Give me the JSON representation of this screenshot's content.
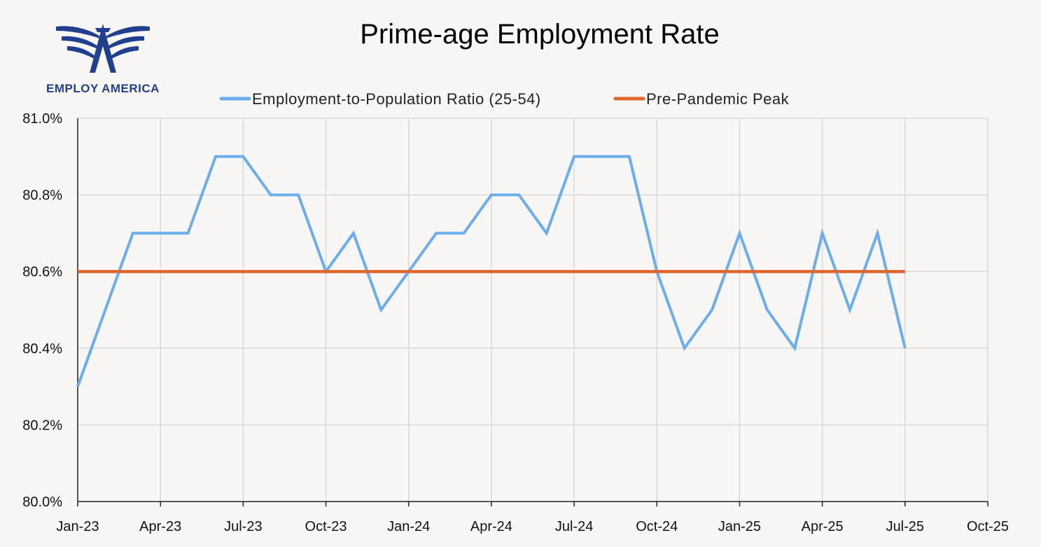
{
  "brand": {
    "name": "EMPLOY AMERICA",
    "color": "#213f8f",
    "icon": "eagle-wings-logo-icon"
  },
  "chart_data": {
    "type": "line",
    "title": "Prime-age Employment Rate",
    "xlabel": "",
    "ylabel": "",
    "x_ticks": [
      "Jan-23",
      "Apr-23",
      "Jul-23",
      "Oct-23",
      "Jan-24",
      "Apr-24",
      "Jul-24",
      "Oct-24",
      "Jan-25",
      "Apr-25",
      "Jul-25",
      "Oct-25"
    ],
    "y_ticks": [
      "80.0%",
      "80.2%",
      "80.4%",
      "80.6%",
      "80.8%",
      "81.0%"
    ],
    "ylim": [
      80.0,
      81.0
    ],
    "xlim": [
      "Jan-23",
      "Oct-25"
    ],
    "grid": true,
    "legend_position": "top-center",
    "x": [
      "Jan-23",
      "Feb-23",
      "Mar-23",
      "Apr-23",
      "May-23",
      "Jun-23",
      "Jul-23",
      "Aug-23",
      "Sep-23",
      "Oct-23",
      "Nov-23",
      "Dec-23",
      "Jan-24",
      "Feb-24",
      "Mar-24",
      "Apr-24",
      "May-24",
      "Jun-24",
      "Jul-24",
      "Aug-24",
      "Sep-24",
      "Oct-24",
      "Nov-24",
      "Dec-24",
      "Jan-25",
      "Feb-25",
      "Mar-25",
      "Apr-25",
      "May-25",
      "Jun-25",
      "Jul-25"
    ],
    "series": [
      {
        "name": "Employment-to-Population Ratio (25-54)",
        "color": "#6aaef0",
        "values": [
          80.3,
          80.5,
          80.7,
          80.7,
          80.7,
          80.9,
          80.9,
          80.8,
          80.8,
          80.6,
          80.7,
          80.5,
          80.6,
          80.7,
          80.7,
          80.8,
          80.8,
          80.7,
          80.9,
          80.9,
          80.9,
          80.6,
          80.4,
          80.5,
          80.7,
          80.5,
          80.4,
          80.7,
          80.5,
          80.7,
          80.4
        ]
      },
      {
        "name": "Pre-Pandemic Peak",
        "color": "#e0662e",
        "values": [
          80.6,
          80.6,
          80.6,
          80.6,
          80.6,
          80.6,
          80.6,
          80.6,
          80.6,
          80.6,
          80.6,
          80.6,
          80.6,
          80.6,
          80.6,
          80.6,
          80.6,
          80.6,
          80.6,
          80.6,
          80.6,
          80.6,
          80.6,
          80.6,
          80.6,
          80.6,
          80.6,
          80.6,
          80.6,
          80.6,
          80.6
        ]
      }
    ]
  }
}
